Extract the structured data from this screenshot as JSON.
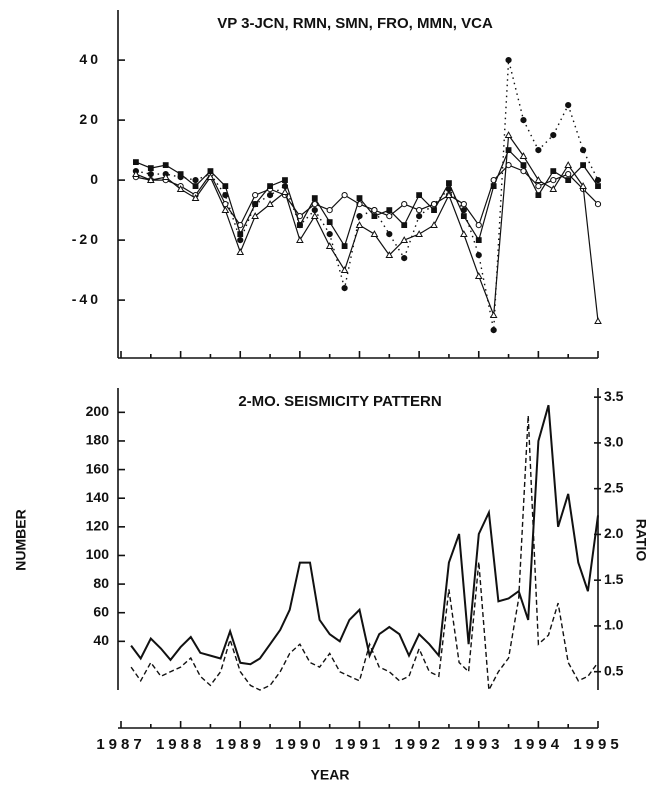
{
  "chart_data": [
    {
      "type": "line",
      "title": "VP 3-JCN, RMN, SMN, FRO, MMN, VCA",
      "x": [
        1987.25,
        1987.5,
        1987.75,
        1988,
        1988.25,
        1988.5,
        1988.75,
        1989,
        1989.25,
        1989.5,
        1989.75,
        1990,
        1990.25,
        1990.5,
        1990.75,
        1991,
        1991.25,
        1991.5,
        1991.75,
        1992,
        1992.25,
        1992.5,
        1992.75,
        1993,
        1993.25,
        1993.5,
        1993.75,
        1994,
        1994.25,
        1994.5,
        1994.75,
        1995
      ],
      "xlim": [
        1987,
        1995
      ],
      "ylim": [
        -59.3,
        56.7
      ],
      "yticks": [
        -40,
        -20,
        0,
        20,
        40
      ],
      "series": [
        {
          "color": "#111111",
          "dash": "dotted",
          "marker": "circle-filled",
          "values": [
            3,
            2,
            2,
            1,
            0,
            2,
            -5,
            -20,
            -8,
            -5,
            -2,
            -15,
            -10,
            -18,
            -36,
            -12,
            -10,
            -18,
            -26,
            -12,
            -8,
            -3,
            -10,
            -25,
            -50,
            40,
            20,
            10,
            15,
            25,
            10,
            0
          ]
        },
        {
          "color": "#111111",
          "dash": "solid",
          "marker": "circle-open",
          "values": [
            1,
            0,
            0,
            -2,
            -5,
            2,
            -8,
            -15,
            -5,
            -3,
            -5,
            -12,
            -8,
            -10,
            -5,
            -8,
            -10,
            -12,
            -8,
            -10,
            -8,
            -5,
            -8,
            -15,
            0,
            5,
            3,
            -2,
            0,
            2,
            -3,
            -8
          ]
        },
        {
          "color": "#111111",
          "dash": "solid",
          "marker": "square-filled",
          "values": [
            6,
            4,
            5,
            2,
            -2,
            3,
            -2,
            -18,
            -8,
            -2,
            0,
            -15,
            -6,
            -14,
            -22,
            -6,
            -12,
            -10,
            -15,
            -5,
            -10,
            -1,
            -12,
            -20,
            -2,
            10,
            5,
            -5,
            3,
            0,
            5,
            -2
          ]
        },
        {
          "color": "#111111",
          "dash": "solid",
          "marker": "triangle-open",
          "values": [
            2,
            0,
            1,
            -3,
            -6,
            1,
            -10,
            -24,
            -12,
            -8,
            -4,
            -20,
            -12,
            -22,
            -30,
            -15,
            -18,
            -25,
            -20,
            -18,
            -15,
            -5,
            -18,
            -32,
            -45,
            15,
            8,
            0,
            -3,
            5,
            -2,
            -47
          ]
        }
      ]
    },
    {
      "type": "line",
      "title": "2-MO. SEISMICITY PATTERN",
      "xlabel": "YEAR",
      "ylabel": "NUMBER",
      "y2label": "RATIO",
      "x": [
        1987.17,
        1987.33,
        1987.5,
        1987.67,
        1987.83,
        1988,
        1988.17,
        1988.33,
        1988.5,
        1988.67,
        1988.83,
        1989,
        1989.17,
        1989.33,
        1989.5,
        1989.67,
        1989.83,
        1990,
        1990.17,
        1990.33,
        1990.5,
        1990.67,
        1990.83,
        1991,
        1991.17,
        1991.33,
        1991.5,
        1991.67,
        1991.83,
        1992,
        1992.17,
        1992.33,
        1992.5,
        1992.67,
        1992.83,
        1993,
        1993.17,
        1993.33,
        1993.5,
        1993.67,
        1993.83,
        1994,
        1994.17,
        1994.33,
        1994.5,
        1994.67,
        1994.83,
        1995
      ],
      "xlim": [
        1987,
        1995
      ],
      "xticks": [
        1987,
        1988,
        1989,
        1990,
        1991,
        1992,
        1993,
        1994,
        1995
      ],
      "ylim": [
        6,
        217
      ],
      "yticks": [
        40,
        60,
        80,
        100,
        120,
        140,
        160,
        180,
        200
      ],
      "y2lim": [
        0.3,
        3.6
      ],
      "y2ticks": [
        0.5,
        {
          "value": 1,
          "label": "1.0"
        },
        1.5,
        {
          "value": 2,
          "label": "2.0"
        },
        2.5,
        {
          "value": 3,
          "label": "3.0"
        },
        3.5
      ],
      "series": [
        {
          "color": "#111111",
          "dash": "solid",
          "values": [
            37,
            28,
            42,
            35,
            27,
            36,
            43,
            32,
            30,
            28,
            47,
            25,
            24,
            28,
            38,
            48,
            62,
            95,
            95,
            55,
            45,
            40,
            55,
            62,
            30,
            45,
            50,
            45,
            30,
            45,
            38,
            30,
            95,
            115,
            38,
            115,
            130,
            68,
            70,
            75,
            55,
            180,
            205,
            120,
            143,
            95,
            75,
            128
          ]
        },
        {
          "color": "#111111",
          "dash": "dashed",
          "axis": "y2",
          "values": [
            0.55,
            0.4,
            0.6,
            0.45,
            0.5,
            0.55,
            0.65,
            0.45,
            0.35,
            0.5,
            0.85,
            0.5,
            0.35,
            0.3,
            0.35,
            0.5,
            0.7,
            0.8,
            0.6,
            0.55,
            0.7,
            0.5,
            0.45,
            0.4,
            0.8,
            0.55,
            0.5,
            0.4,
            0.45,
            0.75,
            0.5,
            0.45,
            1.4,
            0.6,
            0.5,
            1.7,
            0.3,
            0.5,
            0.65,
            1.3,
            3.3,
            0.8,
            0.9,
            1.25,
            0.6,
            0.4,
            0.45,
            0.6
          ]
        }
      ]
    }
  ]
}
